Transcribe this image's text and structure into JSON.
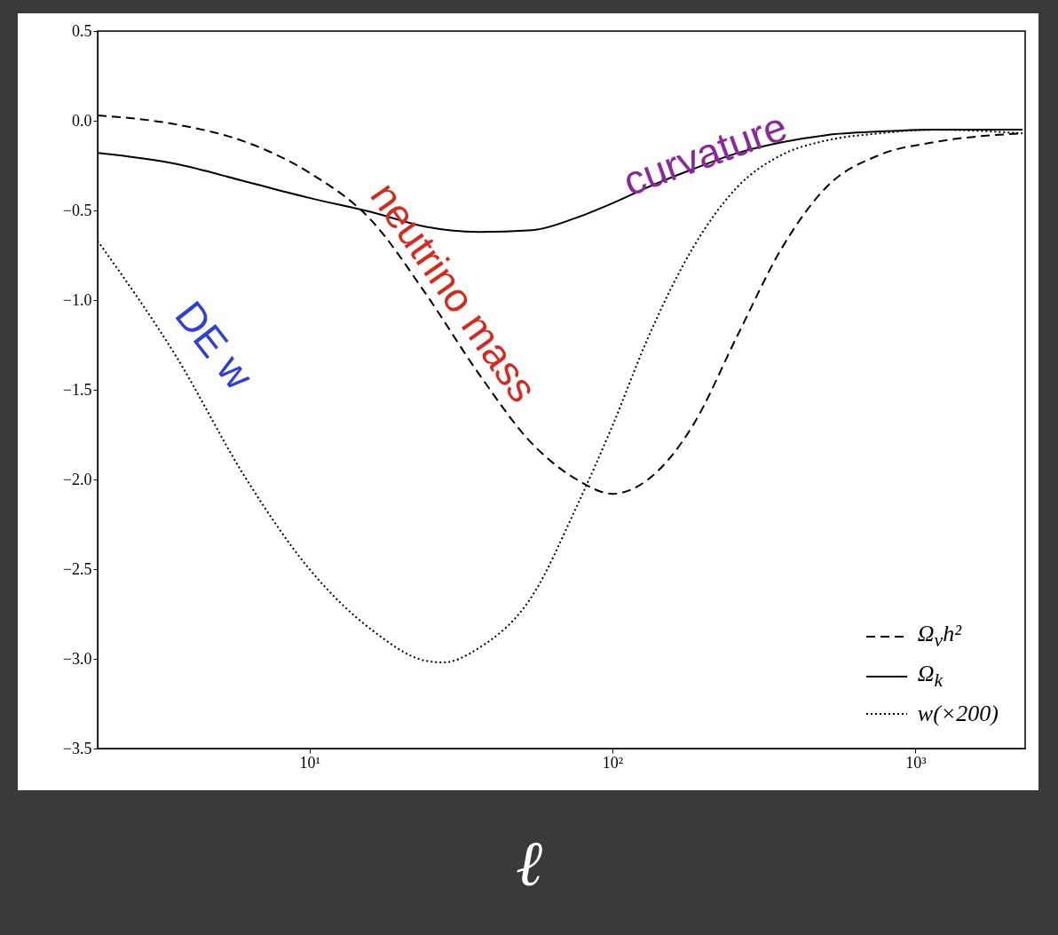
{
  "chart_data": {
    "type": "line",
    "xlabel": "ℓ",
    "log": "x",
    "xlim": [
      2,
      2300
    ],
    "ylim": [
      -3.5,
      0.5
    ],
    "xticks": [
      {
        "value": 10,
        "label": "10¹"
      },
      {
        "value": 100,
        "label": "10²"
      },
      {
        "value": 1000,
        "label": "10³"
      }
    ],
    "yticks": [
      0.5,
      {
        "value": 0,
        "label": "0.0"
      },
      -0.5,
      {
        "value": -1,
        "label": "−1.0"
      },
      -1.5,
      {
        "value": -2,
        "label": "−2.0"
      },
      -2.5,
      {
        "value": -3,
        "label": "−3.0"
      },
      -3.5
    ],
    "grid": false,
    "legend": "bottom right",
    "marker": "none",
    "series": [
      {
        "name": "Ω$_{ν}$h²",
        "color": "#000000",
        "line_style": "dashed",
        "x": [
          2,
          3.62,
          6.2,
          10,
          16.1,
          24.1,
          36.2,
          54.3,
          76.2,
          100,
          131,
          184,
          258,
          362,
          508,
          762,
          1146,
          2255
        ],
        "values": [
          0.03,
          -0.02,
          -0.12,
          -0.29,
          -0.56,
          -0.96,
          -1.41,
          -1.8,
          -2.0,
          -2.08,
          -2.0,
          -1.7,
          -1.2,
          -0.71,
          -0.37,
          -0.19,
          -0.12,
          -0.07
        ]
      },
      {
        "name": "Ω$_{k}$",
        "color": "#000000",
        "line_style": "solid",
        "x": [
          2,
          3.62,
          6.2,
          10,
          16.1,
          24.1,
          36.2,
          54.3,
          76.2,
          100,
          131,
          184,
          258,
          362,
          508,
          762,
          1146,
          2255
        ],
        "values": [
          -0.18,
          -0.24,
          -0.34,
          -0.43,
          -0.51,
          -0.59,
          -0.62,
          -0.61,
          -0.54,
          -0.46,
          -0.37,
          -0.27,
          -0.18,
          -0.12,
          -0.08,
          -0.06,
          -0.05,
          -0.05
        ]
      },
      {
        "name": "w(×200)",
        "color": "#000000",
        "line_style": "dotted",
        "x": [
          2,
          3.62,
          6.2,
          10,
          16.1,
          24.1,
          27.6,
          36.2,
          54.3,
          76.2,
          100,
          131,
          184,
          258,
          362,
          508,
          762,
          1146,
          2255
        ],
        "values": [
          -0.67,
          -1.31,
          -2.0,
          -2.5,
          -2.84,
          -3.01,
          -3.02,
          -2.94,
          -2.65,
          -2.15,
          -1.7,
          -1.21,
          -0.71,
          -0.37,
          -0.19,
          -0.11,
          -0.07,
          -0.05,
          -0.07
        ]
      }
    ],
    "annotations": [
      "neutrino mass",
      "curvature",
      "DE w"
    ]
  }
}
